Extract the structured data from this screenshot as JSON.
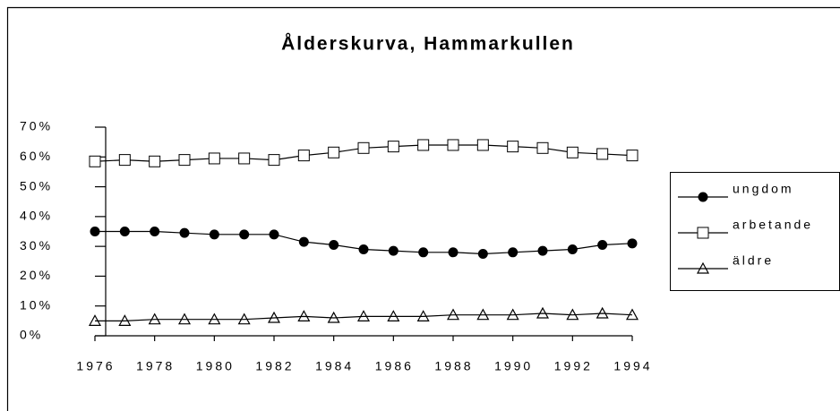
{
  "chart_data": {
    "type": "line",
    "title": "Ålderskurva, Hammarkullen",
    "x": [
      1976,
      1977,
      1978,
      1979,
      1980,
      1981,
      1982,
      1983,
      1984,
      1985,
      1986,
      1987,
      1988,
      1989,
      1990,
      1991,
      1992,
      1993,
      1994
    ],
    "series": [
      {
        "name": "ungdom",
        "color": "#000000",
        "marker": "circle",
        "values": [
          35,
          35,
          35,
          34.5,
          34,
          34,
          34,
          31.5,
          30.5,
          29,
          28.5,
          28,
          28,
          27.5,
          28,
          28.5,
          29,
          30.5,
          31
        ]
      },
      {
        "name": "arbetande",
        "color": "#000000",
        "marker": "square",
        "values": [
          58.5,
          59,
          58.5,
          59,
          59.5,
          59.5,
          59,
          60.5,
          61.5,
          63,
          63.5,
          64,
          64,
          64,
          63.5,
          63,
          61.5,
          61,
          60.5
        ]
      },
      {
        "name": "äldre",
        "color": "#000000",
        "marker": "triangle",
        "values": [
          5,
          5,
          5.5,
          5.5,
          5.5,
          5.5,
          6,
          6.5,
          6,
          6.5,
          6.5,
          6.5,
          7,
          7,
          7,
          7.5,
          7,
          7.5,
          7
        ]
      }
    ],
    "xlim": [
      1976,
      1994
    ],
    "xticks": [
      1976,
      1978,
      1980,
      1982,
      1984,
      1986,
      1988,
      1990,
      1992,
      1994
    ],
    "ylim": [
      0,
      70
    ],
    "yticks": [
      {
        "value": 0,
        "label": "0%"
      },
      {
        "value": 10,
        "label": "10%"
      },
      {
        "value": 20,
        "label": "20%"
      },
      {
        "value": 30,
        "label": "30%"
      },
      {
        "value": 40,
        "label": "40%"
      },
      {
        "value": 50,
        "label": "50%"
      },
      {
        "value": 60,
        "label": "60%"
      },
      {
        "value": 70,
        "label": "70%"
      }
    ],
    "legend": "right"
  }
}
